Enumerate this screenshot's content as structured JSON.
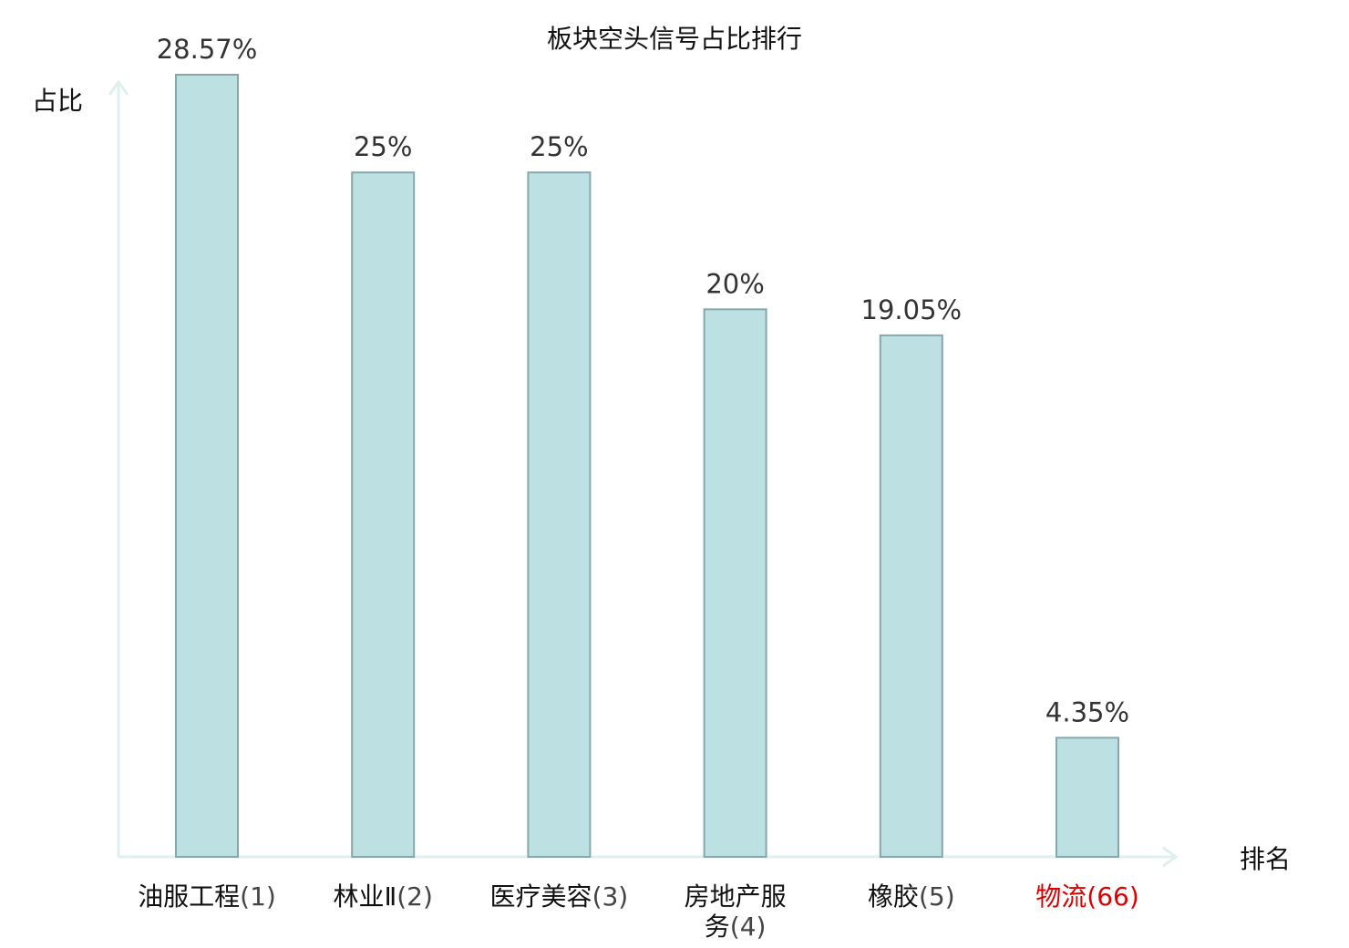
{
  "chart_data": {
    "type": "bar",
    "title": "板块空头信号占比排行",
    "xlabel": "排名",
    "ylabel": "占比",
    "ylim": [
      0,
      30
    ],
    "categories": [
      {
        "name": "油服工程",
        "rank": "(1)",
        "lines": [
          "油服工程(1)"
        ]
      },
      {
        "name": "林业Ⅱ",
        "rank": "(2)",
        "lines": [
          "林业Ⅱ(2)"
        ]
      },
      {
        "name": "医疗美容",
        "rank": "(3)",
        "lines": [
          "医疗美容(3)"
        ]
      },
      {
        "name": "房地产服务",
        "rank": "(4)",
        "lines": [
          "房地产服",
          "务(4)"
        ]
      },
      {
        "name": "橡胶",
        "rank": "(5)",
        "lines": [
          "橡胶(5)"
        ]
      },
      {
        "name": "物流",
        "rank": "(66)",
        "lines": [
          "物流(66)"
        ],
        "highlight": true
      }
    ],
    "values": [
      28.57,
      25,
      25,
      20,
      19.05,
      4.35
    ],
    "value_labels": [
      "28.57%",
      "25%",
      "25%",
      "20%",
      "19.05%",
      "4.35%"
    ],
    "grid": false,
    "legend": "none",
    "colors": {
      "bar_fill": "#bde0e3",
      "bar_stroke": "#86a7ab",
      "axis": "#ddf0ee",
      "highlight_label": "#dd0000"
    }
  }
}
